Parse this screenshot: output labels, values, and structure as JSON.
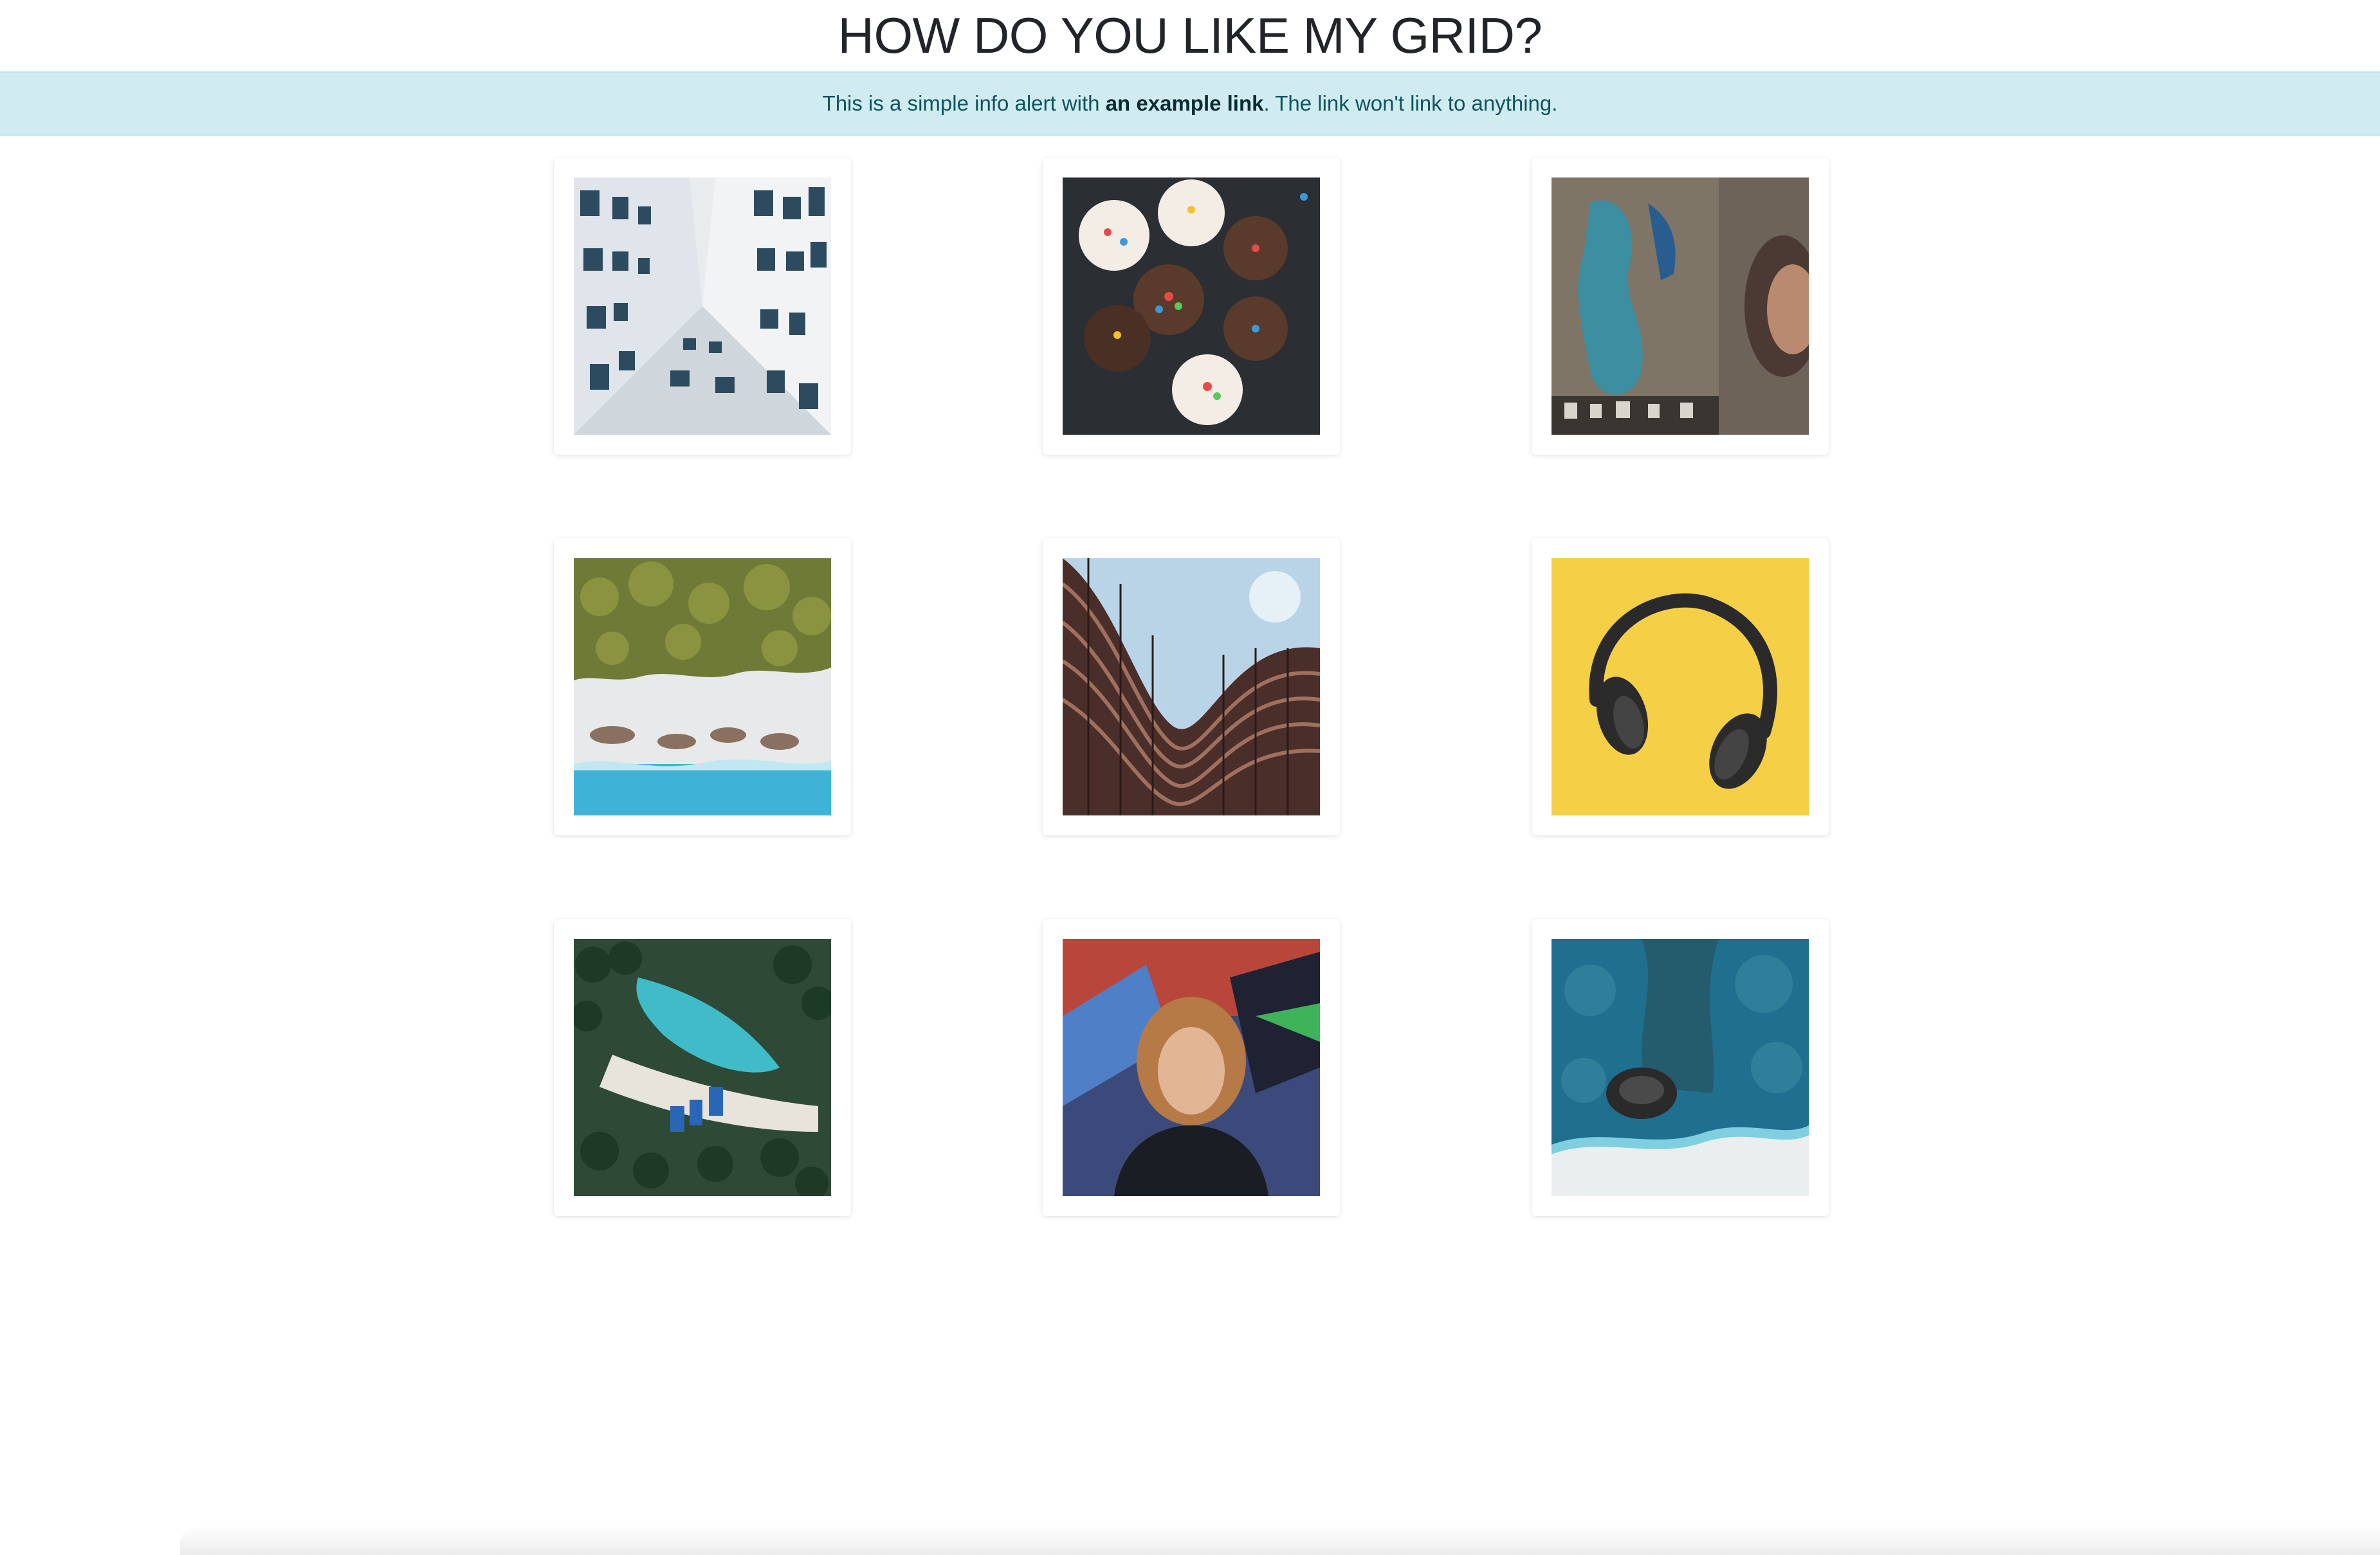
{
  "page": {
    "title": "HOW DO YOU LIKE MY GRID?"
  },
  "alert": {
    "text_before": "This is a simple info alert with ",
    "link_text": "an example link",
    "text_after": ". The link won't link to anything."
  },
  "colors": {
    "alert_bg": "#d1ecf1",
    "alert_text": "#0c5460",
    "page_bg": "#ffffff"
  },
  "grid": {
    "images": [
      {
        "subject": "building-upward-view"
      },
      {
        "subject": "cupcakes"
      },
      {
        "subject": "street-art-mural"
      },
      {
        "subject": "aerial-beach-palms"
      },
      {
        "subject": "curved-building"
      },
      {
        "subject": "headphones-on-yellow"
      },
      {
        "subject": "aerial-tropical-lagoon"
      },
      {
        "subject": "person-portrait-graffiti"
      },
      {
        "subject": "aerial-coast-rocks"
      }
    ]
  }
}
